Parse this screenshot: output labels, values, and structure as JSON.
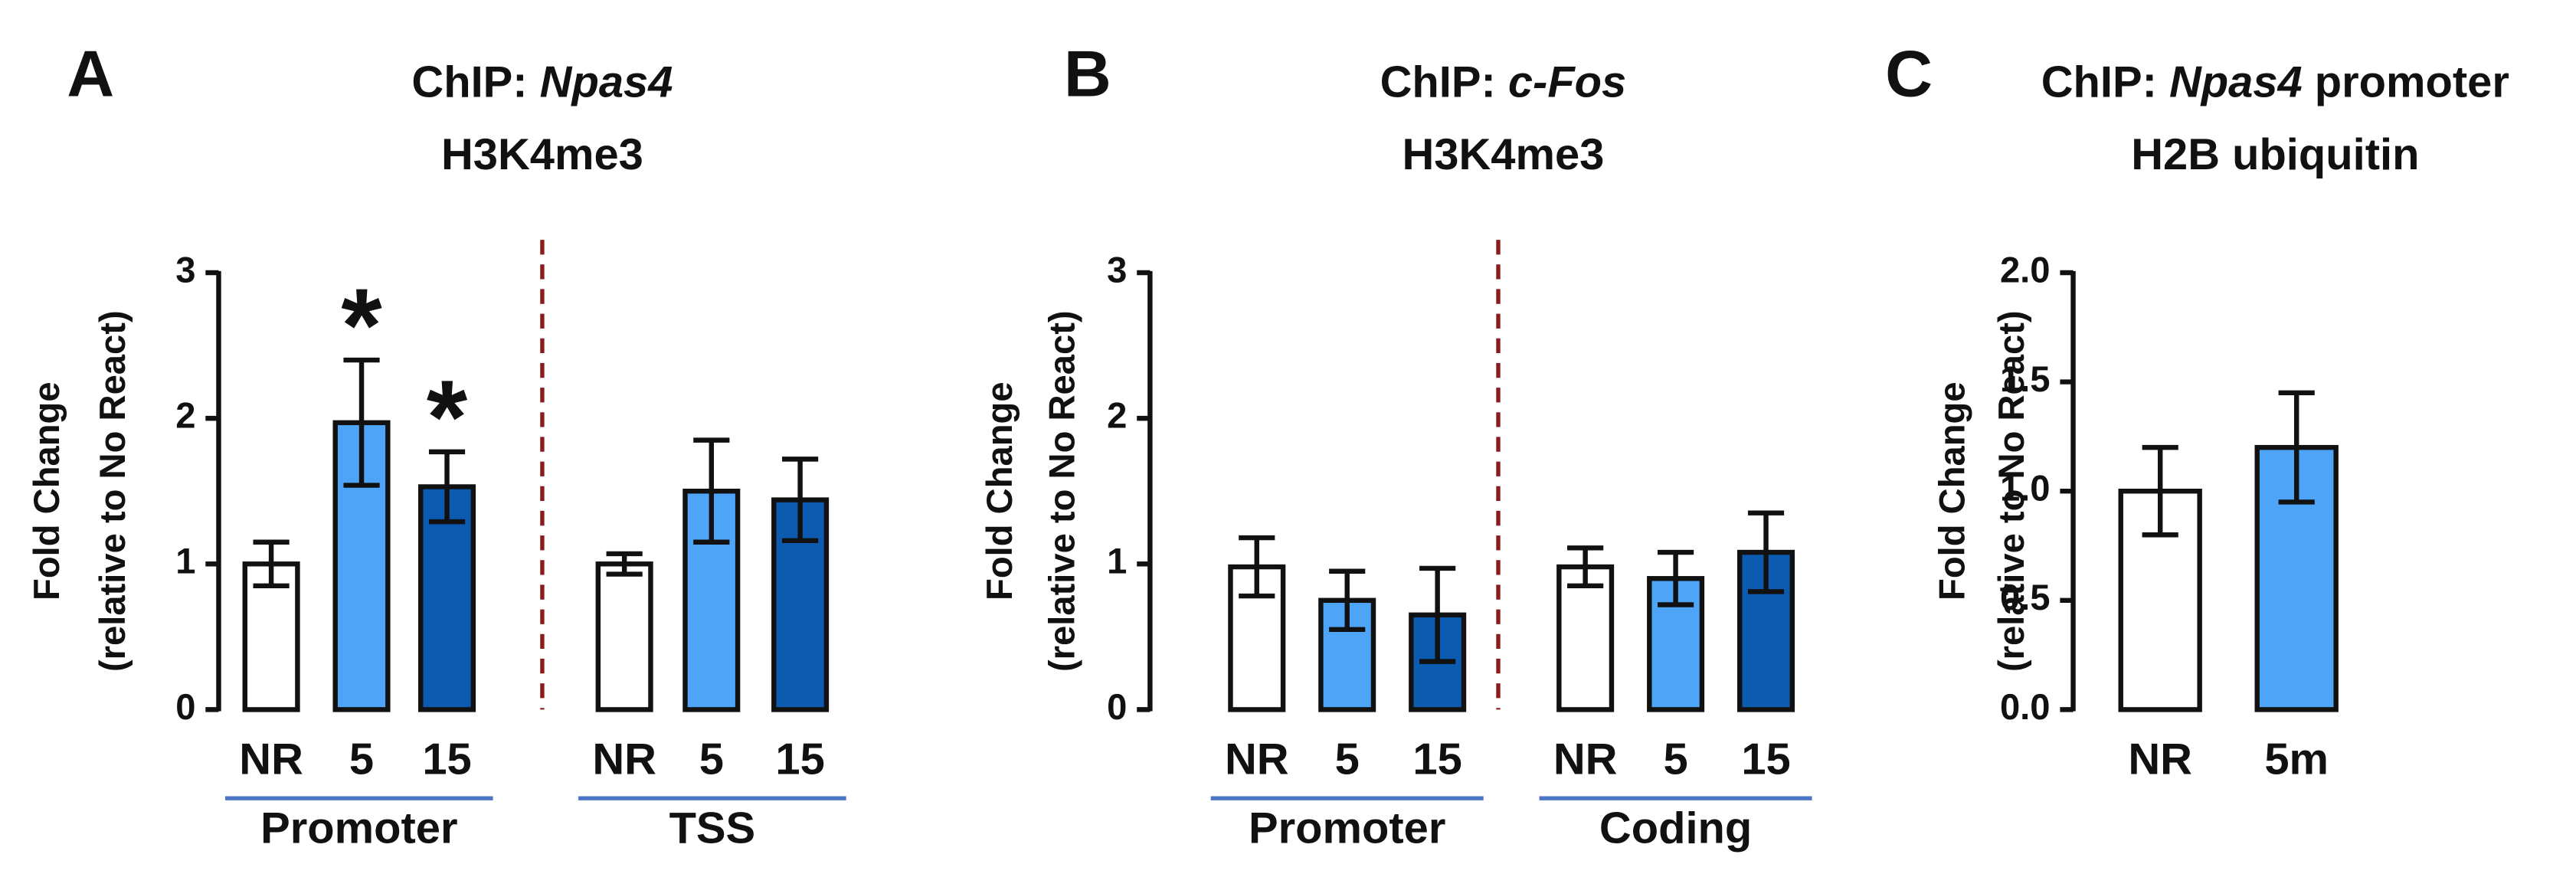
{
  "chart_data": [
    {
      "type": "bar",
      "panel_label": "A",
      "title": [
        "ChIP: Npas4",
        "H3K4me3"
      ],
      "ylabel": [
        "Fold Change",
        "(relative to No React)"
      ],
      "colors": [
        "#ffffff",
        "#4ea4f7",
        "#0d5bb0"
      ],
      "ylim": [
        0,
        3
      ],
      "yticks": [
        0,
        1,
        2,
        3
      ],
      "groups": [
        {
          "name": "Promoter",
          "categories": [
            "NR",
            "5",
            "15"
          ],
          "values": [
            1.0,
            1.97,
            1.53
          ],
          "errors": [
            0.15,
            0.43,
            0.24
          ],
          "annotations": [
            null,
            "*",
            "*"
          ]
        },
        {
          "name": "TSS",
          "categories": [
            "NR",
            "5",
            "15"
          ],
          "values": [
            1.0,
            1.5,
            1.44
          ],
          "errors": [
            0.07,
            0.35,
            0.28
          ]
        }
      ]
    },
    {
      "type": "bar",
      "panel_label": "B",
      "title": [
        "ChIP: c-Fos",
        "H3K4me3"
      ],
      "ylabel": [
        "Fold Change",
        "(relative to No React)"
      ],
      "colors": [
        "#ffffff",
        "#4ea4f7",
        "#0d5bb0"
      ],
      "ylim": [
        0,
        3
      ],
      "yticks": [
        0,
        1,
        2,
        3
      ],
      "groups": [
        {
          "name": "Promoter",
          "categories": [
            "NR",
            "5",
            "15"
          ],
          "values": [
            0.98,
            0.75,
            0.65
          ],
          "errors": [
            0.2,
            0.2,
            0.32
          ]
        },
        {
          "name": "Coding",
          "categories": [
            "NR",
            "5",
            "15"
          ],
          "values": [
            0.98,
            0.9,
            1.08
          ],
          "errors": [
            0.13,
            0.18,
            0.27
          ]
        }
      ]
    },
    {
      "type": "bar",
      "panel_label": "C",
      "title": [
        "ChIP: Npas4 promoter",
        "H2B ubiquitin"
      ],
      "ylabel": [
        "Fold Change",
        "(relative to No React)"
      ],
      "colors": [
        "#ffffff",
        "#4ea4f7"
      ],
      "ylim": [
        0,
        2
      ],
      "yticks": [
        {
          "value": 0,
          "label": "0.0"
        },
        {
          "value": 0.5,
          "label": "0.5"
        },
        {
          "value": 1,
          "label": "1.0"
        },
        {
          "value": 1.5,
          "label": "1.5"
        },
        {
          "value": 2,
          "label": "2.0"
        }
      ],
      "groups": [
        {
          "categories": [
            "NR",
            "5m"
          ],
          "values": [
            1.0,
            1.2
          ],
          "errors": [
            0.2,
            0.25
          ]
        }
      ]
    }
  ]
}
